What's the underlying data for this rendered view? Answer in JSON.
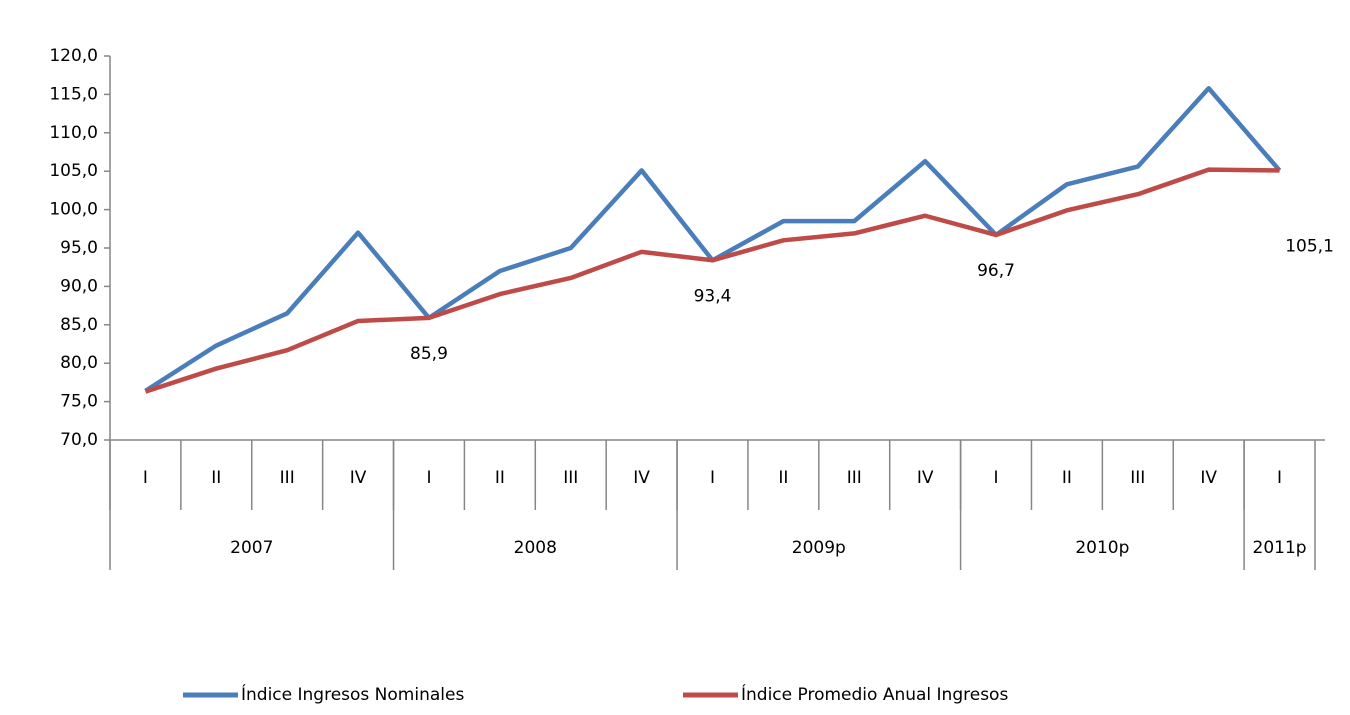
{
  "chart_data": {
    "type": "line",
    "categories": [
      "I",
      "II",
      "III",
      "IV",
      "I",
      "II",
      "III",
      "IV",
      "I",
      "II",
      "III",
      "IV",
      "I",
      "II",
      "III",
      "IV",
      "I"
    ],
    "groups": [
      {
        "label": "2007",
        "count": 4
      },
      {
        "label": "2008",
        "count": 4
      },
      {
        "label": "2009p",
        "count": 4
      },
      {
        "label": "2010p",
        "count": 4
      },
      {
        "label": "2011p",
        "count": 1
      }
    ],
    "series": [
      {
        "name": "Índice Ingresos Nominales",
        "color": "#4a7ebb",
        "values": [
          76.4,
          82.3,
          86.5,
          97.0,
          85.9,
          92.0,
          95.0,
          105.1,
          93.4,
          98.5,
          98.5,
          106.3,
          96.7,
          103.3,
          105.6,
          115.8,
          105.1
        ]
      },
      {
        "name": "Índice Promedio Anual Ingresos",
        "color": "#be4b48",
        "values": [
          76.3,
          79.3,
          81.7,
          85.5,
          85.9,
          89.0,
          91.1,
          94.5,
          93.4,
          96.0,
          96.9,
          99.2,
          96.7,
          99.9,
          102.0,
          105.2,
          105.1
        ],
        "value_labels": [
          null,
          null,
          null,
          null,
          "85,9",
          null,
          null,
          null,
          "93,4",
          null,
          null,
          null,
          "96,7",
          null,
          null,
          null,
          "105,1"
        ]
      }
    ],
    "ylim": [
      70,
      120
    ],
    "yticks": [
      {
        "value": 70,
        "label": "70,0"
      },
      {
        "value": 75,
        "label": "75,0"
      },
      {
        "value": 80,
        "label": "80,0"
      },
      {
        "value": 85,
        "label": "85,0"
      },
      {
        "value": 90,
        "label": "90,0"
      },
      {
        "value": 95,
        "label": "95,0"
      },
      {
        "value": 100,
        "label": "100,0"
      },
      {
        "value": 105,
        "label": "105,0"
      },
      {
        "value": 110,
        "label": "110,0"
      },
      {
        "value": 115,
        "label": "115,0"
      },
      {
        "value": 120,
        "label": "120,0"
      }
    ],
    "legend": "bottom"
  }
}
